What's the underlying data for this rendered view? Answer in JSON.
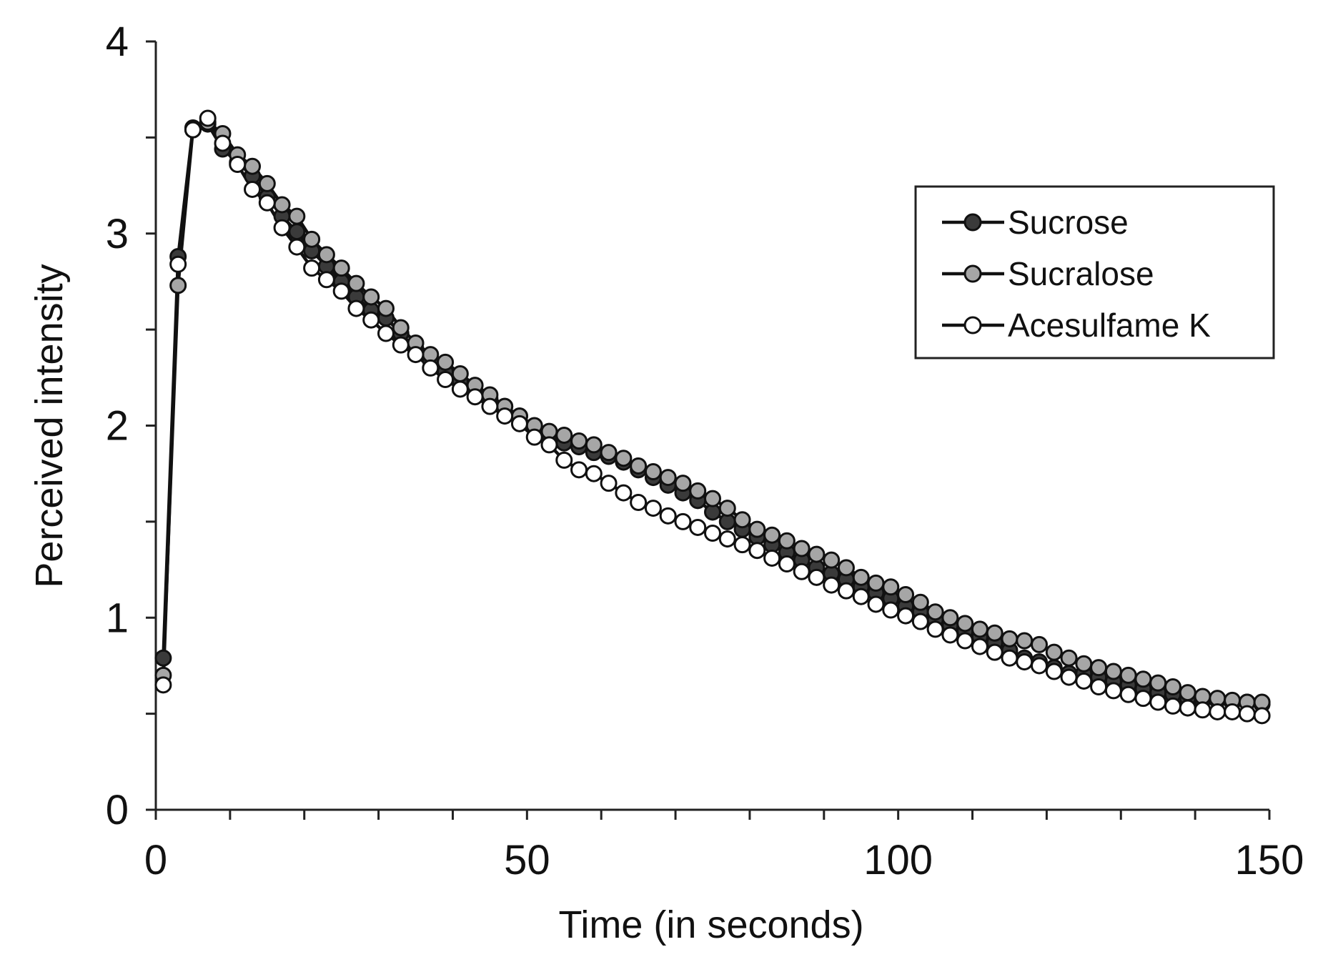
{
  "chart_data": {
    "type": "line",
    "title": "",
    "xlabel": "Time (in seconds)",
    "ylabel": "Perceived intensity",
    "xlim": [
      0,
      150
    ],
    "ylim": [
      0,
      4
    ],
    "x_ticks": [
      0,
      50,
      100,
      150
    ],
    "y_ticks": [
      0,
      1,
      2,
      3,
      4
    ],
    "x_tick_labels": [
      "0",
      "50",
      "100",
      "150"
    ],
    "y_tick_labels": [
      "0",
      "1",
      "2",
      "3",
      "4"
    ],
    "x_minor_step": 10,
    "y_minor_step": 0.5,
    "grid": false,
    "legend_position": "top-right",
    "legend_labels": [
      "Sucrose",
      "Sucralose",
      "Acesulfame K"
    ],
    "x": [
      1,
      3,
      5,
      7,
      9,
      11,
      13,
      15,
      17,
      19,
      21,
      23,
      25,
      27,
      29,
      31,
      33,
      35,
      37,
      39,
      41,
      43,
      45,
      47,
      49,
      51,
      53,
      55,
      57,
      59,
      61,
      63,
      65,
      67,
      69,
      71,
      73,
      75,
      77,
      79,
      81,
      83,
      85,
      87,
      89,
      91,
      93,
      95,
      97,
      99,
      101,
      103,
      105,
      107,
      109,
      111,
      113,
      115,
      117,
      119,
      121,
      123,
      125,
      127,
      129,
      131,
      133,
      135,
      137,
      139,
      141,
      143,
      145,
      147,
      149
    ],
    "series": [
      {
        "name": "Sucrose",
        "marker_fill": "#3a3a3a",
        "values": [
          0.79,
          2.88,
          3.55,
          3.57,
          3.44,
          3.37,
          3.3,
          3.19,
          3.09,
          3.01,
          2.91,
          2.83,
          2.75,
          2.67,
          2.6,
          2.56,
          2.48,
          2.4,
          2.34,
          2.28,
          2.23,
          2.18,
          2.14,
          2.1,
          2.05,
          1.99,
          1.95,
          1.91,
          1.89,
          1.86,
          1.84,
          1.81,
          1.77,
          1.73,
          1.69,
          1.65,
          1.61,
          1.55,
          1.5,
          1.46,
          1.42,
          1.38,
          1.34,
          1.3,
          1.26,
          1.23,
          1.2,
          1.16,
          1.13,
          1.1,
          1.06,
          1.03,
          0.99,
          0.96,
          0.93,
          0.9,
          0.87,
          0.83,
          0.79,
          0.77,
          0.74,
          0.71,
          0.71,
          0.69,
          0.67,
          0.65,
          0.63,
          0.61,
          0.6,
          0.58,
          0.57,
          0.57,
          0.56,
          0.56,
          0.55
        ]
      },
      {
        "name": "Sucralose",
        "marker_fill": "#a6a6a6",
        "values": [
          0.7,
          2.73,
          3.54,
          3.58,
          3.52,
          3.41,
          3.35,
          3.26,
          3.15,
          3.09,
          2.97,
          2.89,
          2.82,
          2.74,
          2.67,
          2.61,
          2.51,
          2.43,
          2.37,
          2.33,
          2.27,
          2.21,
          2.16,
          2.1,
          2.05,
          2.0,
          1.97,
          1.95,
          1.92,
          1.9,
          1.86,
          1.83,
          1.79,
          1.76,
          1.73,
          1.7,
          1.66,
          1.62,
          1.57,
          1.51,
          1.46,
          1.43,
          1.4,
          1.36,
          1.33,
          1.3,
          1.26,
          1.21,
          1.18,
          1.16,
          1.12,
          1.08,
          1.03,
          1.0,
          0.97,
          0.94,
          0.92,
          0.89,
          0.88,
          0.86,
          0.82,
          0.79,
          0.76,
          0.74,
          0.72,
          0.7,
          0.68,
          0.66,
          0.64,
          0.61,
          0.59,
          0.58,
          0.57,
          0.56,
          0.56
        ]
      },
      {
        "name": "Acesulfame K",
        "marker_fill": "#ffffff",
        "values": [
          0.65,
          2.84,
          3.54,
          3.6,
          3.47,
          3.36,
          3.23,
          3.16,
          3.03,
          2.93,
          2.82,
          2.76,
          2.7,
          2.61,
          2.55,
          2.48,
          2.42,
          2.37,
          2.3,
          2.24,
          2.19,
          2.15,
          2.1,
          2.05,
          2.01,
          1.94,
          1.9,
          1.82,
          1.77,
          1.75,
          1.7,
          1.65,
          1.6,
          1.57,
          1.53,
          1.5,
          1.47,
          1.44,
          1.41,
          1.38,
          1.35,
          1.31,
          1.28,
          1.24,
          1.21,
          1.17,
          1.14,
          1.11,
          1.07,
          1.04,
          1.01,
          0.98,
          0.94,
          0.91,
          0.88,
          0.85,
          0.82,
          0.79,
          0.77,
          0.75,
          0.72,
          0.69,
          0.67,
          0.64,
          0.62,
          0.6,
          0.58,
          0.56,
          0.54,
          0.53,
          0.52,
          0.51,
          0.51,
          0.5,
          0.49
        ]
      }
    ]
  }
}
